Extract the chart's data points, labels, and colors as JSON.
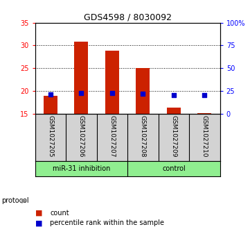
{
  "title": "GDS4598 / 8030092",
  "samples": [
    "GSM1027205",
    "GSM1027206",
    "GSM1027207",
    "GSM1027208",
    "GSM1027209",
    "GSM1027210"
  ],
  "counts": [
    18.9,
    30.8,
    28.9,
    25.0,
    16.3,
    15.05
  ],
  "percentiles": [
    21.0,
    23.0,
    23.0,
    22.0,
    20.7,
    20.0
  ],
  "ylim_left": [
    15,
    35
  ],
  "ylim_right": [
    0,
    100
  ],
  "yticks_left": [
    15,
    20,
    25,
    30,
    35
  ],
  "yticks_right": [
    0,
    25,
    50,
    75,
    100
  ],
  "bar_color": "#cc2200",
  "dot_color": "#0000cc",
  "bar_bottom": 15,
  "group_labels": [
    "miR-31 inhibition",
    "control"
  ],
  "group_split": 3,
  "protocol_label": "protocol",
  "legend_items": [
    "count",
    "percentile rank within the sample"
  ],
  "legend_colors": [
    "#cc2200",
    "#0000cc"
  ],
  "background_label": "#d3d3d3",
  "background_group": "#90ee90"
}
